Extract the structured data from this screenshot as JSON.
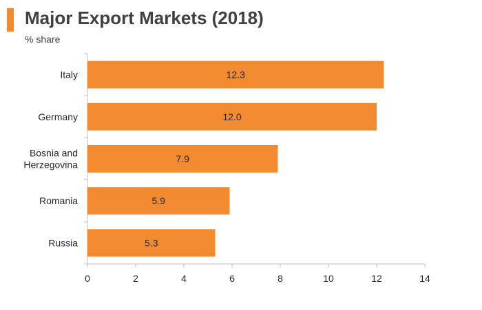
{
  "header": {
    "title": "Major Export Markets (2018)",
    "subtitle": "% share",
    "accent_color": "#f28a30"
  },
  "chart_data": {
    "type": "bar",
    "orientation": "horizontal",
    "title": "Major Export Markets (2018)",
    "ylabel": "% share",
    "categories": [
      "Italy",
      "Germany",
      "Bosnia and Herzegovina",
      "Romania",
      "Russia"
    ],
    "category_lines": [
      [
        "Italy"
      ],
      [
        "Germany"
      ],
      [
        "Bosnia and",
        "Herzegovina"
      ],
      [
        "Romania"
      ],
      [
        "Russia"
      ]
    ],
    "values": [
      12.3,
      12.0,
      7.9,
      5.9,
      5.3
    ],
    "value_labels": [
      "12.3",
      "12.0",
      "7.9",
      "5.9",
      "5.3"
    ],
    "xlim": [
      0,
      14
    ],
    "xticks": [
      0,
      2,
      4,
      6,
      8,
      10,
      12,
      14
    ],
    "grid": false,
    "bar_color": "#f28a30"
  }
}
